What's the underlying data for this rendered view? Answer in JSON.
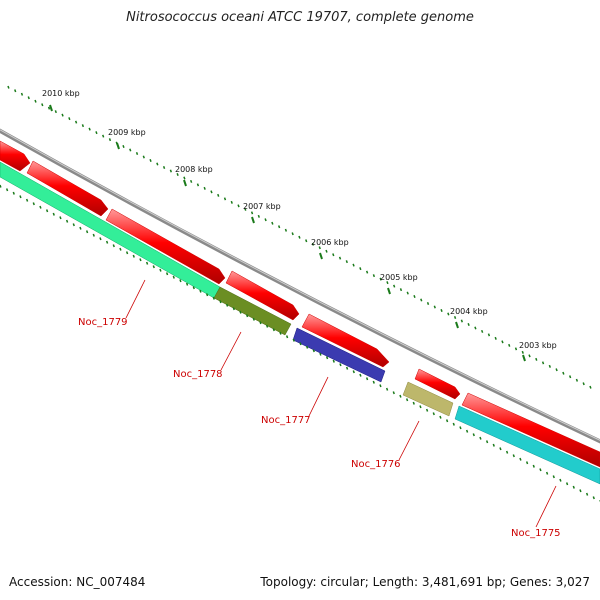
{
  "title": "Nitrosococcus oceani ATCC 19707, complete genome",
  "footer": {
    "accession": "Accession: NC_007484",
    "topology": "Topology: circular; Length: 3,481,691 bp; Genes: 3,027"
  },
  "scale": {
    "unit": "kbp",
    "ticks": [
      "2003 kbp",
      "2004 kbp",
      "2005 kbp",
      "2006 kbp",
      "2007 kbp",
      "2008 kbp",
      "2009 kbp",
      "2010 kbp"
    ]
  },
  "genes": [
    {
      "label": "Noc_1779",
      "color": "#33ee99"
    },
    {
      "label": "Noc_1778",
      "color": "#6b8e23"
    },
    {
      "label": "Noc_1777",
      "color": "#3b3bb0"
    },
    {
      "label": "Noc_1776",
      "color": "#bdb76b"
    },
    {
      "label": "Noc_1775",
      "color": "#22cccc"
    }
  ],
  "colors": {
    "cds_forward": "#ff0000",
    "backbone": "#808080",
    "tick": "#1a7a1a"
  }
}
